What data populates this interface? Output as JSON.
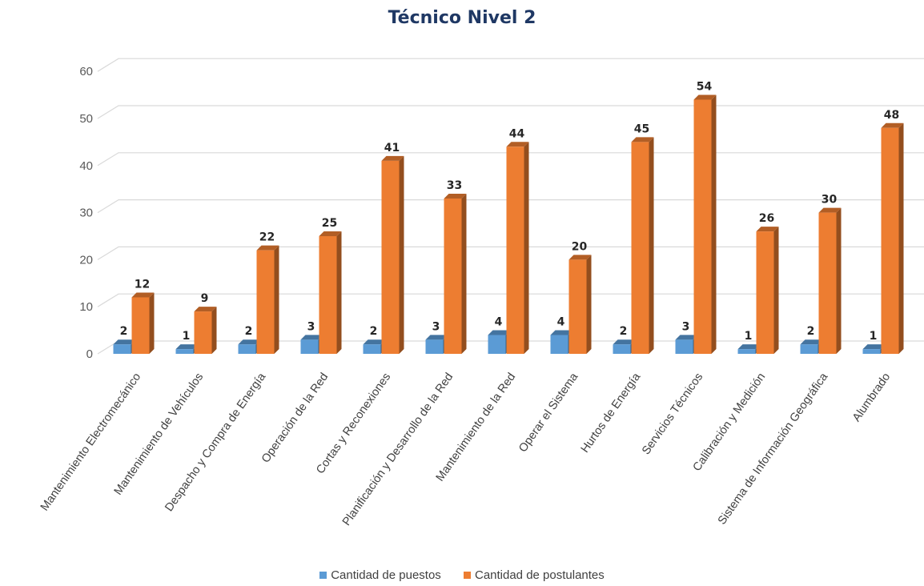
{
  "chart_data": {
    "type": "bar",
    "title": "Técnico Nivel 2",
    "categories": [
      "Mantenimiento Electromecánico",
      "Mantenimiento de Vehículos",
      "Despacho y Compra de Energía",
      "Operación de la Red",
      "Cortas y Reconexiones",
      "Planificación y Desarrollo de la Red",
      "Mantenimiento de la Red",
      "Operar el Sistema",
      "Hurtos de Energía",
      "Servicios Técnicos",
      "Calibración y Medición",
      "Sistema de Información Geográfica",
      "Alumbrado"
    ],
    "series": [
      {
        "name": "Cantidad de puestos",
        "color": "#5b9bd5",
        "values": [
          2,
          1,
          2,
          3,
          2,
          3,
          4,
          4,
          2,
          3,
          1,
          2,
          1
        ]
      },
      {
        "name": "Cantidad de postulantes",
        "color": "#ed7d31",
        "values": [
          12,
          9,
          22,
          25,
          41,
          33,
          44,
          20,
          45,
          54,
          26,
          30,
          48
        ]
      }
    ],
    "ylim": [
      0,
      60
    ],
    "yticks": [
      0,
      10,
      20,
      30,
      40,
      50,
      60
    ],
    "grid": true,
    "legend": "bottom",
    "style": "3d-column"
  }
}
